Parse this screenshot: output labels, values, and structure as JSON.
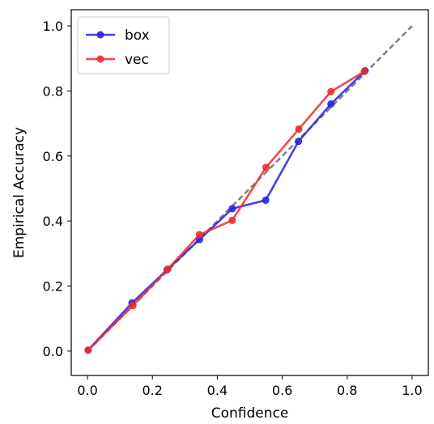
{
  "chart_data": {
    "type": "line",
    "xlabel": "Confidence",
    "ylabel": "Empirical Accuracy",
    "xlim": [
      -0.05,
      1.05
    ],
    "ylim": [
      -0.075,
      1.05
    ],
    "x_ticks": [
      "0.0",
      "0.2",
      "0.4",
      "0.6",
      "0.8",
      "1.0"
    ],
    "y_ticks": [
      "0.0",
      "0.2",
      "0.4",
      "0.6",
      "0.8",
      "1.0"
    ],
    "grid": false,
    "legend_position": "top-left",
    "reference_line": {
      "style": "dashed",
      "color": "#808080",
      "x": [
        0,
        1
      ],
      "y": [
        0,
        1
      ]
    },
    "series": [
      {
        "name": "box",
        "color": "#2323e8",
        "x": [
          0.002,
          0.137,
          0.245,
          0.345,
          0.446,
          0.549,
          0.65,
          0.75,
          0.855
        ],
        "y": [
          0.003,
          0.148,
          0.25,
          0.343,
          0.438,
          0.464,
          0.645,
          0.76,
          0.862
        ]
      },
      {
        "name": "vec",
        "color": "#ee2a2a",
        "x": [
          0.002,
          0.14,
          0.247,
          0.345,
          0.446,
          0.55,
          0.651,
          0.75,
          0.853
        ],
        "y": [
          0.003,
          0.14,
          0.252,
          0.358,
          0.402,
          0.565,
          0.683,
          0.798,
          0.86
        ]
      }
    ]
  }
}
